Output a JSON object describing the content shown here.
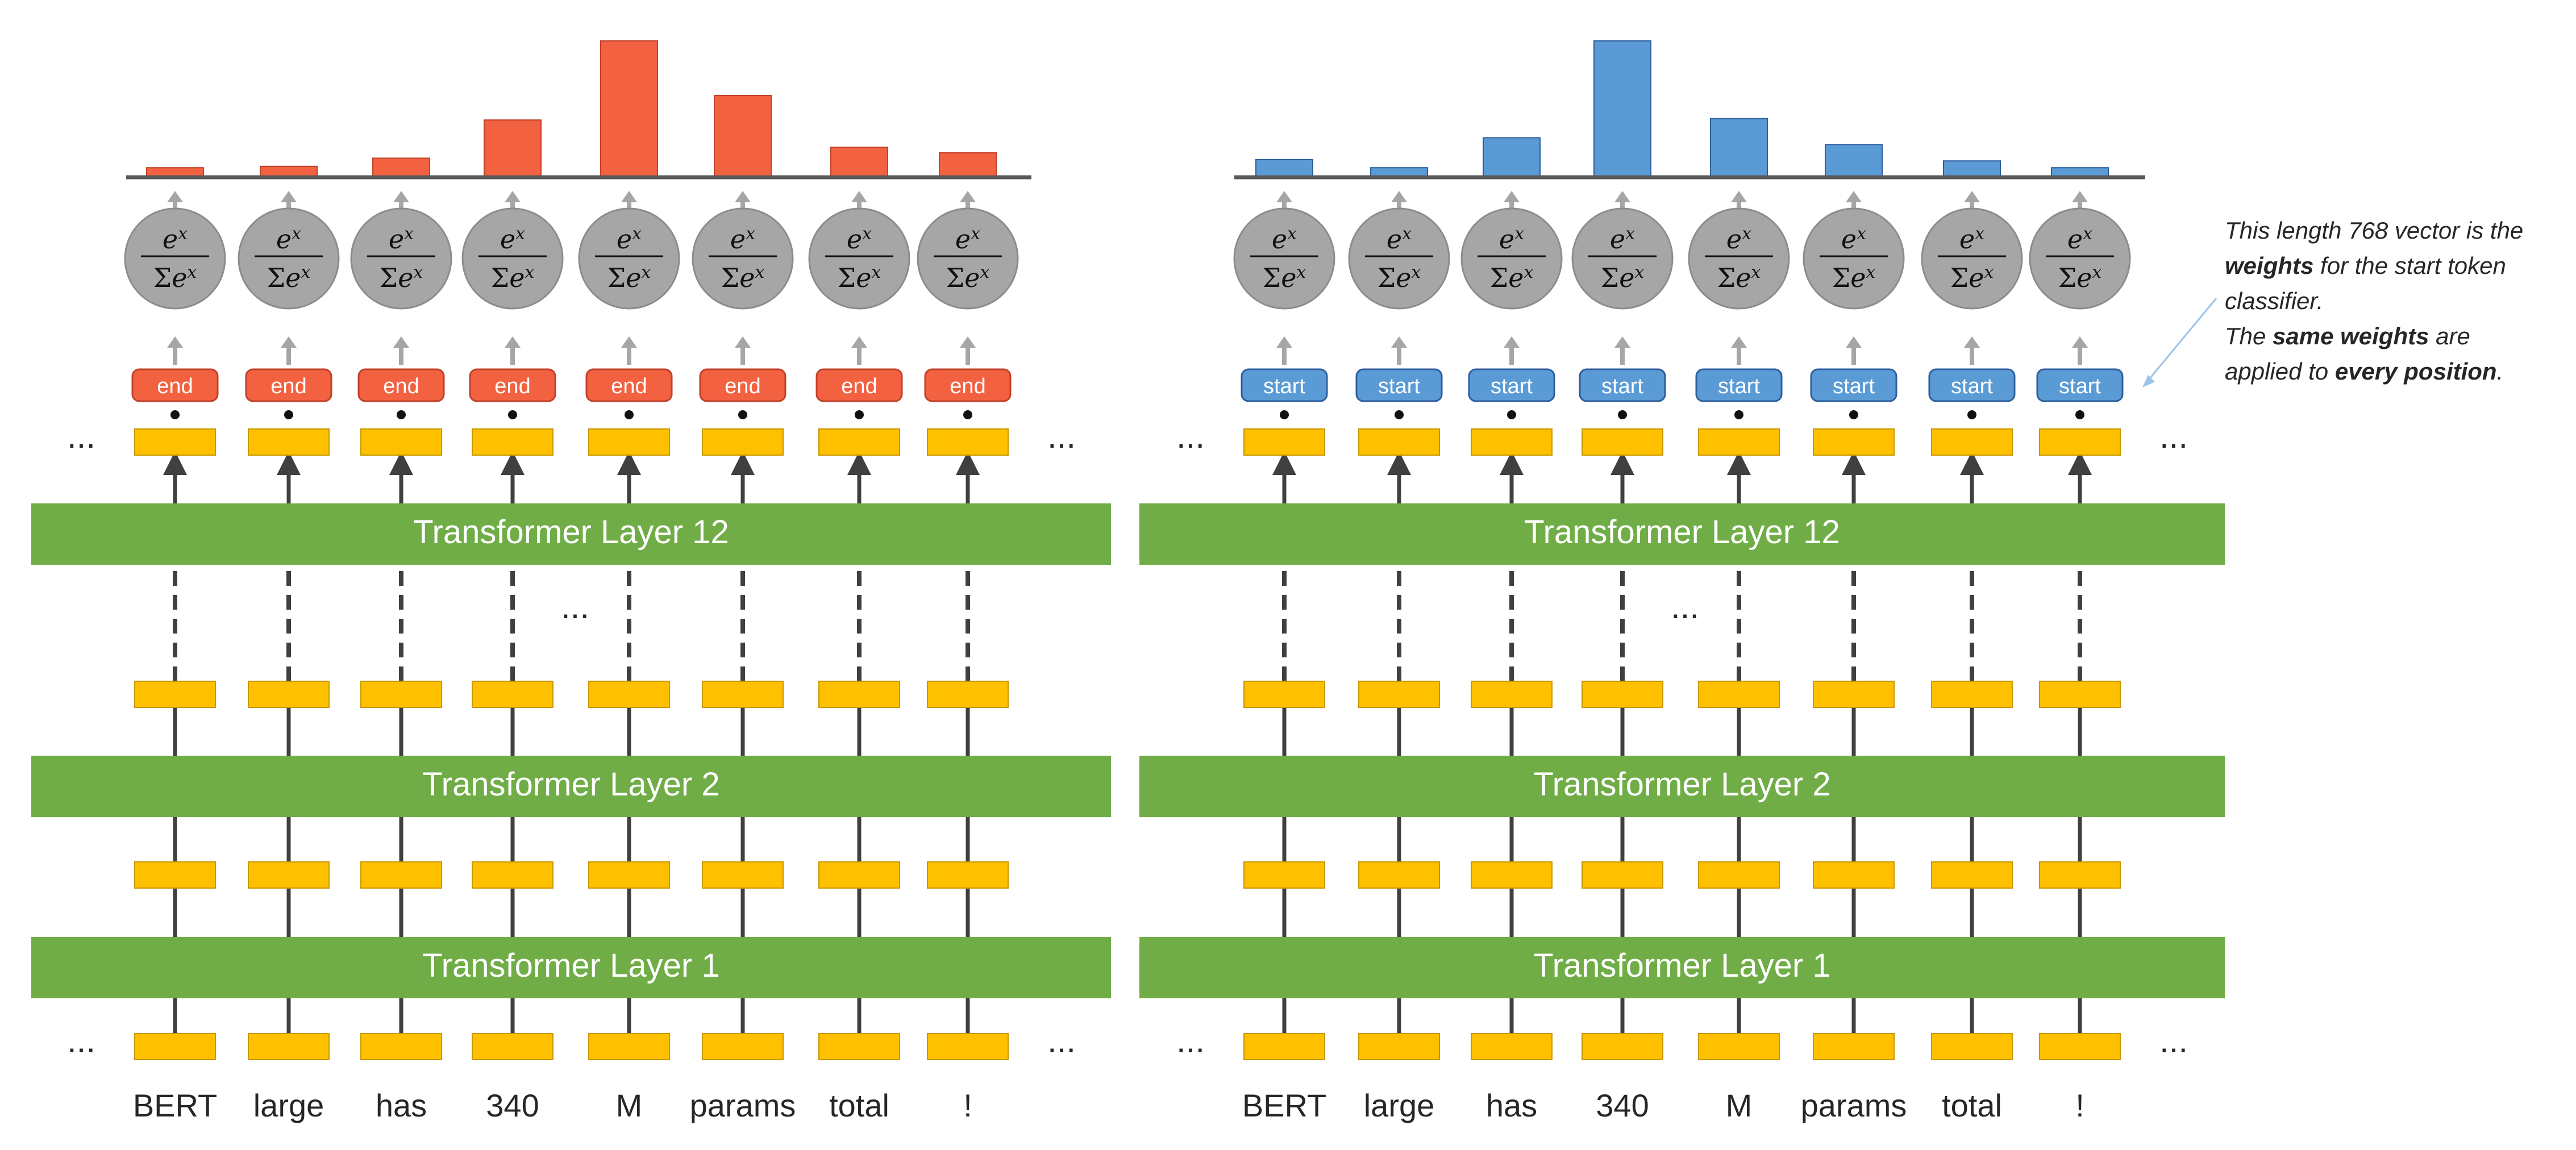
{
  "tokens": [
    "BERT",
    "large",
    "has",
    "340",
    "M",
    "params",
    "total",
    "!"
  ],
  "ellipsis": "...",
  "layers": {
    "top": "Transformer Layer 12",
    "middle": "Transformer Layer 2",
    "bottom": "Transformer Layer 1"
  },
  "panels": [
    {
      "id": "end",
      "classifier_label": "end",
      "accent": "#f26140",
      "accent_border": "#c2402a",
      "bar_values": [
        0.07,
        0.08,
        0.14,
        0.42,
        1.0,
        0.6,
        0.22,
        0.18
      ]
    },
    {
      "id": "start",
      "classifier_label": "start",
      "accent": "#5b9bd5",
      "accent_border": "#2e5e9e",
      "bar_values": [
        0.13,
        0.07,
        0.29,
        1.0,
        0.43,
        0.24,
        0.12,
        0.07
      ]
    }
  ],
  "softmax": {
    "numerator": "e",
    "exponent": "x",
    "sum_symbol": "Σ"
  },
  "note": {
    "line1": "This length 768 vector is the",
    "line2_bold": "weights",
    "line2_rest": "for the start token",
    "line3": "classifier.",
    "line4_pre": "The",
    "line4_bold": "same weights",
    "line4_post": "are",
    "line5_pre": "applied to",
    "line5_bold": "every position",
    "line5_post": "."
  },
  "colors": {
    "layer_fill": "#70ad47",
    "layer_text": "#ffffff",
    "embedding_fill": "#ffc000",
    "embedding_border": "#c99700",
    "arrow": "#404040",
    "softmax_fill": "#a6a6a6",
    "softmax_border": "#8c8c8c",
    "axis": "#595959",
    "small_arrow": "#a6a6a6",
    "note_line": "#9dc3e6"
  }
}
